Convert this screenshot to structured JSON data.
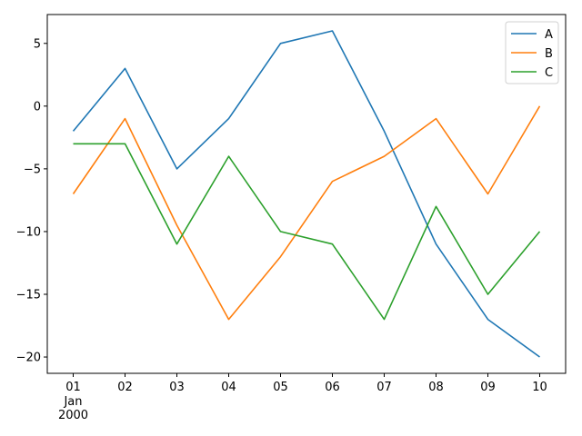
{
  "chart_data": {
    "type": "line",
    "title": "",
    "xlabel": "",
    "ylabel": "",
    "x_tick_labels": [
      "01",
      "02",
      "03",
      "04",
      "05",
      "06",
      "07",
      "08",
      "09",
      "10"
    ],
    "x_first_tick_extra": [
      "Jan",
      "2000"
    ],
    "x": [
      "2000-01-01",
      "2000-01-02",
      "2000-01-03",
      "2000-01-04",
      "2000-01-05",
      "2000-01-06",
      "2000-01-07",
      "2000-01-08",
      "2000-01-09",
      "2000-01-10"
    ],
    "ylim": [
      -21.3,
      7.3
    ],
    "yticks": [
      5,
      0,
      -5,
      -10,
      -15,
      -20
    ],
    "ytick_labels": [
      "5",
      "0",
      "−5",
      "−10",
      "−15",
      "−20"
    ],
    "grid": false,
    "legend_position": "top-right",
    "series": [
      {
        "name": "A",
        "color": "#1f77b4",
        "values": [
          -2,
          3,
          -5,
          -1,
          5,
          6,
          -2,
          -11,
          -17,
          -20
        ]
      },
      {
        "name": "B",
        "color": "#ff7f0e",
        "values": [
          -7,
          -1,
          -9.5,
          -17,
          -12,
          -6,
          -4,
          -1,
          -7,
          0
        ]
      },
      {
        "name": "C",
        "color": "#2ca02c",
        "values": [
          -3,
          -3,
          -11,
          -4,
          -10,
          -11,
          -17,
          -8,
          -15,
          -10
        ]
      }
    ]
  }
}
